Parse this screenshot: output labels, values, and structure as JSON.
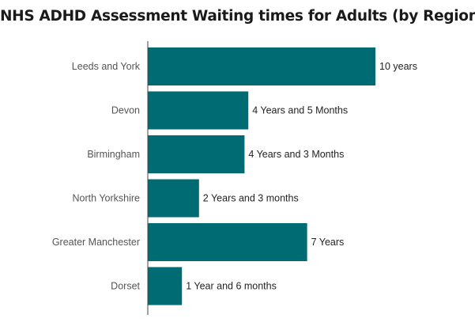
{
  "chart_data": {
    "type": "bar",
    "orientation": "horizontal",
    "title": "NHS ADHD Assessment Waiting times for Adults (by Region)",
    "categories": [
      "Leeds and York",
      "Devon",
      "Birmingham",
      "North Yorkshire",
      "Greater Manchester",
      "Dorset"
    ],
    "values": [
      120,
      53,
      51,
      27,
      84,
      18
    ],
    "unit": "months",
    "data_labels": [
      "10 years",
      "4 Years and 5 Months",
      "4 Years and 3 Months",
      "2 Years and 3 months",
      "7 Years",
      "1 Year and 6 months"
    ],
    "xlim": [
      0,
      120
    ],
    "grid": false,
    "legend": "none",
    "colors": {
      "bar": "#006b73",
      "axis": "#444444"
    }
  }
}
